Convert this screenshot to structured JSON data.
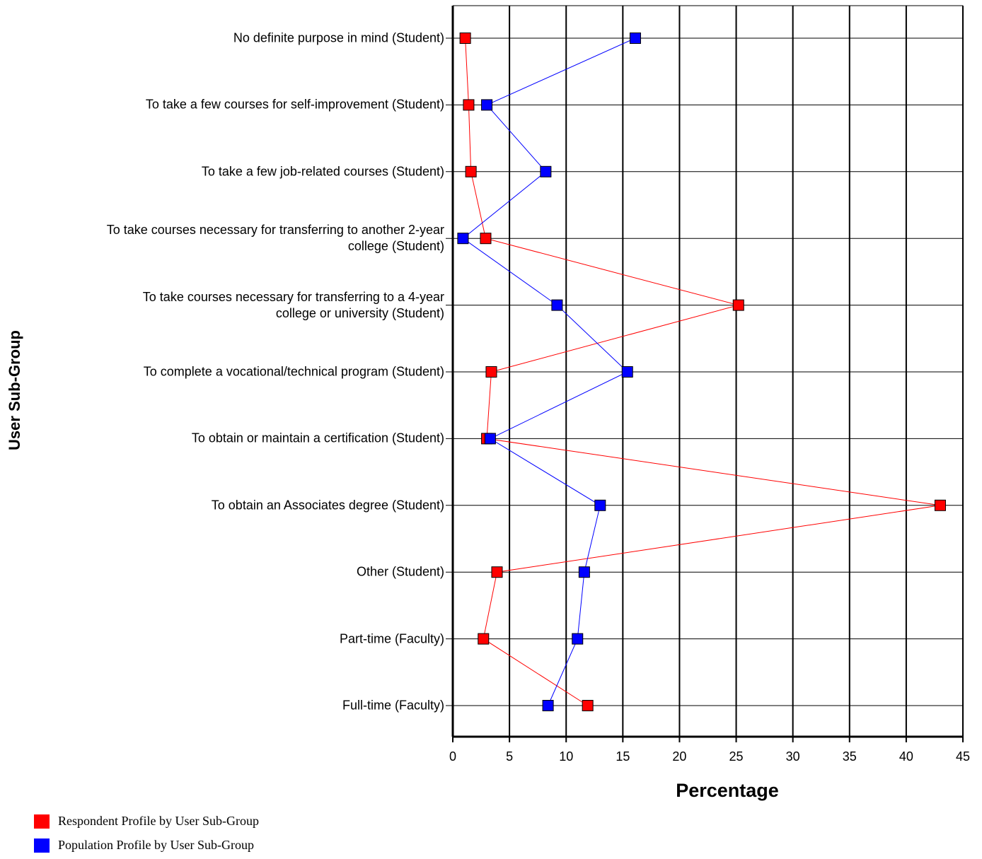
{
  "chart_data": {
    "type": "line",
    "y_label": "User Sub-Group",
    "x_label": "Percentage",
    "categories": [
      "No definite purpose in mind (Student)",
      "To take a few courses for self-improvement (Student)",
      "To take a few job-related courses (Student)",
      "To take courses necessary for transferring to another 2-year\ncollege (Student)",
      "To take courses necessary for transferring to a 4-year\ncollege or university (Student)",
      "To complete a vocational/technical program (Student)",
      "To obtain or maintain a certification (Student)",
      "To obtain an Associates degree (Student)",
      "Other (Student)",
      "Part-time (Faculty)",
      "Full-time (Faculty)"
    ],
    "series": [
      {
        "name": "Respondent Profile by User Sub-Group",
        "color": "#ff0000",
        "values": [
          1.1,
          1.4,
          1.6,
          2.9,
          25.2,
          3.4,
          3.0,
          43.0,
          3.9,
          2.7,
          11.9
        ]
      },
      {
        "name": "Population Profile by User Sub-Group",
        "color": "#0000ff",
        "values": [
          16.1,
          3.0,
          8.2,
          0.9,
          9.2,
          15.4,
          3.3,
          13.0,
          11.6,
          11.0,
          8.4
        ]
      }
    ],
    "xlim": [
      0,
      45
    ],
    "xticks": [
      0,
      5,
      10,
      15,
      20,
      25,
      30,
      35,
      40,
      45
    ],
    "grid": true
  }
}
